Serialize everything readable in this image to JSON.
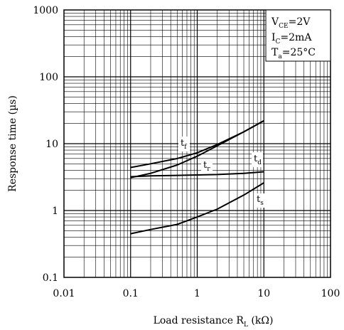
{
  "chart_data": {
    "type": "line",
    "xscale": "log",
    "yscale": "log",
    "xlim": [
      0.01,
      100
    ],
    "ylim": [
      0.1,
      1000
    ],
    "grid": true,
    "xlabel": "Load resistance R",
    "xlabel_sub": "L",
    "xlabel_unit": " (kΩ)",
    "ylabel": "Response time (µs)",
    "x_tick_labels": [
      "0.01",
      "0.1",
      "1",
      "10",
      "100"
    ],
    "y_tick_labels": [
      "0.1",
      "1",
      "10",
      "100",
      "1000"
    ],
    "conditions": [
      {
        "main": "V",
        "sub": "CE",
        "rest": "=2V"
      },
      {
        "main": "I",
        "sub": "C",
        "rest": "=2mA"
      },
      {
        "main": "T",
        "sub": "a",
        "rest": "=25°C"
      }
    ],
    "series": [
      {
        "name": "t",
        "sub": "f",
        "x": [
          0.1,
          0.2,
          0.5,
          1,
          2,
          5,
          10
        ],
        "y": [
          4.4,
          5.0,
          6.0,
          7.3,
          9.7,
          15.0,
          22.0
        ]
      },
      {
        "name": "t",
        "sub": "r",
        "x": [
          0.1,
          0.2,
          0.5,
          1,
          2,
          5,
          10
        ],
        "y": [
          3.1,
          3.6,
          4.8,
          6.5,
          9.3,
          15.0,
          22.0
        ]
      },
      {
        "name": "t",
        "sub": "d",
        "x": [
          0.1,
          0.2,
          0.5,
          1,
          2,
          5,
          10
        ],
        "y": [
          3.2,
          3.3,
          3.35,
          3.4,
          3.45,
          3.6,
          3.8
        ]
      },
      {
        "name": "t",
        "sub": "s",
        "x": [
          0.1,
          0.2,
          0.5,
          1,
          2,
          5,
          10
        ],
        "y": [
          0.45,
          0.52,
          0.62,
          0.8,
          1.05,
          1.7,
          2.6
        ]
      }
    ]
  }
}
